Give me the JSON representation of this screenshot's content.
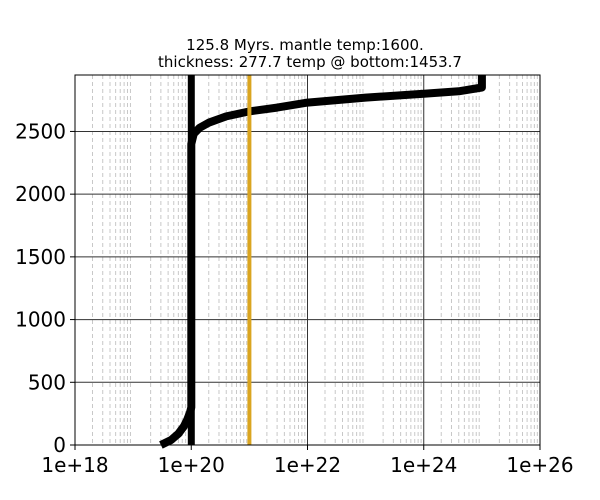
{
  "chart_data": {
    "type": "line",
    "title_line1": "125.8 Myrs. mantle temp:1600.",
    "title_line2": "thickness: 277.7 temp @ bottom:1453.7",
    "xscale": "log",
    "xlim": [
      1e+18,
      1e+26
    ],
    "ylim": [
      0,
      2950
    ],
    "x_ticks": [
      {
        "value": 1e+18,
        "label": "1e+18"
      },
      {
        "value": 1e+20,
        "label": "1e+20"
      },
      {
        "value": 1e+22,
        "label": "1e+22"
      },
      {
        "value": 1e+24,
        "label": "1e+24"
      },
      {
        "value": 1e+26,
        "label": "1e+26"
      }
    ],
    "y_ticks": [
      {
        "value": 0,
        "label": "0"
      },
      {
        "value": 500,
        "label": "500"
      },
      {
        "value": 1000,
        "label": "1000"
      },
      {
        "value": 1500,
        "label": "1500"
      },
      {
        "value": 2000,
        "label": "2000"
      },
      {
        "value": 2500,
        "label": "2500"
      }
    ],
    "grid": {
      "major": true,
      "minor_x": true
    },
    "colors": {
      "profile": "#000000",
      "reference": "#DAA520",
      "grid_major": "#333333",
      "grid_minor": "#c8c8c8"
    },
    "series": [
      {
        "points": [
          [
            3e+19,
            0
          ],
          [
            4.5e+19,
            40
          ],
          [
            6e+19,
            90
          ],
          [
            7.5e+19,
            150
          ],
          [
            8.5e+19,
            200
          ],
          [
            9.5e+19,
            260
          ],
          [
            1e+20,
            300
          ],
          [
            1e+20,
            2400
          ],
          [
            1.1e+20,
            2480
          ],
          [
            1.4e+20,
            2530
          ],
          [
            2e+20,
            2570
          ],
          [
            4e+20,
            2620
          ],
          [
            1e+21,
            2660
          ],
          [
            3e+21,
            2690
          ],
          [
            1e+22,
            2730
          ],
          [
            1e+23,
            2770
          ],
          [
            1e+24,
            2800
          ],
          [
            4e+24,
            2820
          ],
          [
            1e+25,
            2850
          ],
          [
            1e+25,
            2950
          ]
        ]
      },
      {
        "points": [
          [
            1e+20,
            0
          ],
          [
            1e+20,
            2950
          ]
        ]
      },
      {
        "points": [
          [
            1e+21,
            0
          ],
          [
            1e+21,
            2950
          ]
        ]
      }
    ]
  }
}
